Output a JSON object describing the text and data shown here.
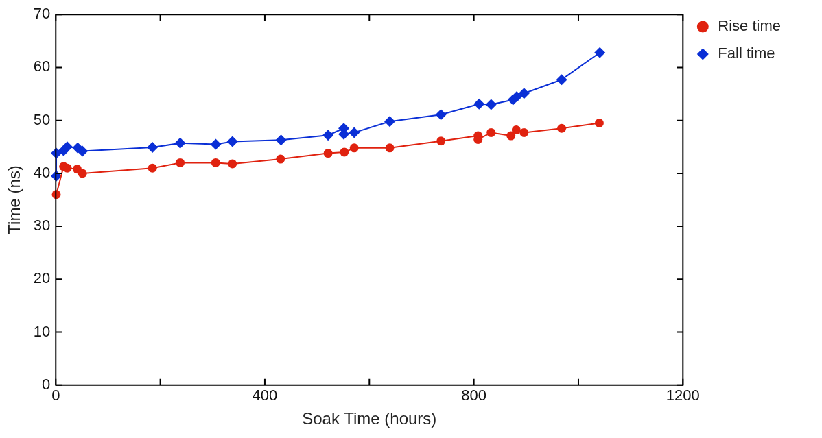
{
  "chart_data": {
    "type": "line",
    "xlabel": "Soak Time (hours)",
    "ylabel": "Time (ns)",
    "xlim": [
      0,
      1200
    ],
    "xticks": [
      0,
      {
        "value": 200,
        "label": null
      },
      400,
      {
        "value": 600,
        "label": null
      },
      800,
      {
        "value": 1000,
        "label": null
      },
      1200
    ],
    "ylim": [
      0,
      70
    ],
    "yticks": [
      0,
      10,
      20,
      30,
      40,
      50,
      60,
      70
    ],
    "grid": false,
    "legend": "top right",
    "line_style": "solid",
    "series": [
      {
        "name": "Rise time",
        "color": "#e0220f",
        "marker": "circle",
        "x": [
          1,
          15,
          22,
          41,
          51,
          185,
          238,
          306,
          338,
          430,
          521,
          552,
          571,
          639,
          737,
          808,
          808,
          833,
          871,
          881,
          896,
          968,
          1040
        ],
        "values": [
          36.0,
          41.3,
          41.0,
          40.8,
          40.0,
          41.0,
          42.0,
          42.0,
          41.8,
          42.7,
          43.8,
          44.0,
          44.8,
          44.8,
          46.1,
          47.1,
          46.4,
          47.7,
          47.1,
          48.2,
          47.7,
          48.5,
          49.5
        ]
      },
      {
        "name": "Fall time",
        "color": "#0a2fd6",
        "marker": "diamond",
        "x": [
          1,
          1,
          15,
          22,
          42,
          51,
          185,
          238,
          306,
          338,
          431,
          521,
          551,
          551,
          571,
          639,
          737,
          810,
          833,
          875,
          882,
          896,
          968,
          1041
        ],
        "values": [
          39.5,
          43.8,
          44.3,
          45.0,
          44.8,
          44.2,
          44.9,
          45.7,
          45.5,
          46.0,
          46.3,
          47.2,
          48.5,
          47.4,
          47.7,
          49.8,
          51.1,
          53.1,
          53.0,
          53.9,
          54.5,
          55.1,
          57.7,
          62.8
        ]
      }
    ]
  }
}
